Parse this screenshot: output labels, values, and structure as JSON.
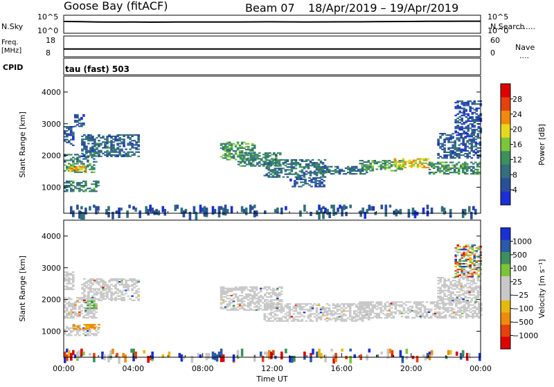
{
  "header": {
    "radar_name": "Goose Bay (fitACF)",
    "beam": "Beam 07",
    "date_range": "18/Apr/2019 – 19/Apr/2019"
  },
  "colors": {
    "power_scale": [
      "#1a2fd6",
      "#2a4f9a",
      "#336f7c",
      "#3d8f5e",
      "#7cc53a",
      "#e6d81c",
      "#f08a0a",
      "#e8400c",
      "#e00000"
    ],
    "velocity_scale": [
      "#e00000",
      "#e8400c",
      "#f08a0a",
      "#e6b80c",
      "#c8c8c8",
      "#c8c8c8",
      "#7cc53a",
      "#3d8f5e",
      "#2a5aa8",
      "#1a2fd6"
    ],
    "ground_scatter": "#c8c8c8"
  },
  "chart_data": [
    {
      "type": "line",
      "name": "sky-noise-panel",
      "ylabel": "N.Sky",
      "right_label": "N.Search",
      "y_ticks_left": [
        "10^5",
        "10^0"
      ],
      "y_ticks_right": [
        "10^5",
        "10^0"
      ],
      "x": [
        0,
        1,
        2,
        3,
        4,
        5,
        6,
        7,
        8,
        9,
        10,
        11,
        12,
        13,
        14,
        15,
        16,
        17,
        18,
        19,
        20,
        21,
        22,
        23,
        24
      ],
      "series": [
        {
          "values": [
            2500,
            2200,
            1800,
            1600,
            1700,
            1500,
            1600,
            1800,
            1700,
            1700,
            1800,
            1900,
            2000,
            1900,
            1800,
            1900,
            2000,
            2000,
            2200,
            2400,
            2600,
            2800,
            3000,
            3100,
            3200
          ]
        }
      ]
    },
    {
      "type": "line",
      "name": "frequency-panel",
      "ylabel_lines": [
        "Freq.",
        "[MHz]"
      ],
      "right_label": "Nave",
      "y_ticks_left": [
        18,
        8
      ],
      "y_ticks_right": [
        60,
        0
      ],
      "ylim": [
        8,
        18
      ],
      "x": [
        0,
        24
      ],
      "series": [
        {
          "values": [
            10,
            10
          ]
        }
      ]
    },
    {
      "type": "heatmap",
      "name": "power-panel",
      "cpid_label": "CPID",
      "cpid_value": "tau (fast) 503",
      "ylabel": "Slant Range [km]",
      "y_ticks": [
        1000,
        2000,
        3000,
        4000
      ],
      "ylim": [
        180,
        4500
      ],
      "xlim_hours": [
        0,
        24
      ],
      "colorbar_label": "Power [dB]",
      "colorbar_ticks": [
        "4",
        "8",
        "12",
        "16",
        "20",
        "24",
        "28"
      ],
      "colorbar_range": [
        0,
        30
      ],
      "bands": [
        {
          "t0": 0.0,
          "t1": 1.8,
          "r0": 1450,
          "r1": 1750,
          "level": 12
        },
        {
          "t0": 0.3,
          "t1": 1.2,
          "r0": 1480,
          "r1": 1620,
          "level": 20
        },
        {
          "t0": 0.0,
          "t1": 1.9,
          "r0": 1780,
          "r1": 2050,
          "level": 9
        },
        {
          "t0": 1.0,
          "t1": 4.3,
          "r0": 1950,
          "r1": 2650,
          "level": 7
        },
        {
          "t0": 0.0,
          "t1": 0.6,
          "r0": 2300,
          "r1": 2900,
          "level": 6
        },
        {
          "t0": 0.6,
          "t1": 1.2,
          "r0": 2900,
          "r1": 3300,
          "level": 5
        },
        {
          "t0": 0.0,
          "t1": 2.0,
          "r0": 850,
          "r1": 1200,
          "level": 10
        },
        {
          "t0": 9.0,
          "t1": 11.0,
          "r0": 1850,
          "r1": 2400,
          "level": 12
        },
        {
          "t0": 10.0,
          "t1": 12.5,
          "r0": 1650,
          "r1": 2100,
          "level": 10
        },
        {
          "t0": 11.5,
          "t1": 15.0,
          "r0": 1300,
          "r1": 1850,
          "level": 8
        },
        {
          "t0": 13.0,
          "t1": 15.0,
          "r0": 1000,
          "r1": 1300,
          "level": 6
        },
        {
          "t0": 14.5,
          "t1": 17.5,
          "r0": 1400,
          "r1": 1650,
          "level": 8
        },
        {
          "t0": 17.0,
          "t1": 19.5,
          "r0": 1500,
          "r1": 1850,
          "level": 12
        },
        {
          "t0": 19.0,
          "t1": 21.0,
          "r0": 1600,
          "r1": 1900,
          "level": 18
        },
        {
          "t0": 21.0,
          "t1": 24.0,
          "r0": 1400,
          "r1": 1800,
          "level": 11
        },
        {
          "t0": 21.5,
          "t1": 24.0,
          "r0": 1900,
          "r1": 2700,
          "level": 6
        },
        {
          "t0": 22.5,
          "t1": 24.0,
          "r0": 2700,
          "r1": 3700,
          "level": 5
        },
        {
          "t0": 0.0,
          "t1": 24.0,
          "r0": 180,
          "r1": 450,
          "level": 6,
          "sparse": true
        }
      ]
    },
    {
      "type": "heatmap",
      "name": "velocity-panel",
      "ylabel": "Slant Range [km]",
      "y_ticks": [
        1000,
        2000,
        3000,
        4000
      ],
      "ylim": [
        180,
        4500
      ],
      "xlim_hours": [
        0,
        24
      ],
      "colorbar_label": "Velocity [m s⁻¹]",
      "colorbar_ticks": [
        "1000",
        "500",
        "100",
        "25",
        "−25",
        "−100",
        "−500",
        "−1000"
      ],
      "x_ticks": [
        "00:00",
        "04:00",
        "08:00",
        "12:00",
        "16:00",
        "20:00",
        "00:00"
      ],
      "xlabel": "Time UT",
      "bands": [
        {
          "t0": 0.0,
          "t1": 1.9,
          "r0": 1400,
          "r1": 2050,
          "kind": "gs"
        },
        {
          "t0": 1.0,
          "t1": 4.3,
          "r0": 1950,
          "r1": 2650,
          "kind": "gs"
        },
        {
          "t0": 0.0,
          "t1": 0.6,
          "r0": 2300,
          "r1": 2900,
          "kind": "gs"
        },
        {
          "t0": 0.0,
          "t1": 2.0,
          "r0": 850,
          "r1": 1200,
          "kind": "gs"
        },
        {
          "t0": 0.4,
          "t1": 2.0,
          "r0": 1050,
          "r1": 1200,
          "kind": "neg"
        },
        {
          "t0": 1.2,
          "t1": 1.9,
          "r0": 1700,
          "r1": 1950,
          "kind": "pos"
        },
        {
          "t0": 9.0,
          "t1": 12.5,
          "r0": 1650,
          "r1": 2400,
          "kind": "gs"
        },
        {
          "t0": 11.5,
          "t1": 17.5,
          "r0": 1300,
          "r1": 1850,
          "kind": "gs"
        },
        {
          "t0": 17.0,
          "t1": 24.0,
          "r0": 1400,
          "r1": 1900,
          "kind": "gs"
        },
        {
          "t0": 21.5,
          "t1": 24.0,
          "r0": 1900,
          "r1": 2700,
          "kind": "gs"
        },
        {
          "t0": 22.5,
          "t1": 24.0,
          "r0": 2700,
          "r1": 3700,
          "kind": "mix"
        },
        {
          "t0": 0.0,
          "t1": 24.0,
          "r0": 180,
          "r1": 450,
          "kind": "mix",
          "sparse": true
        }
      ]
    }
  ]
}
